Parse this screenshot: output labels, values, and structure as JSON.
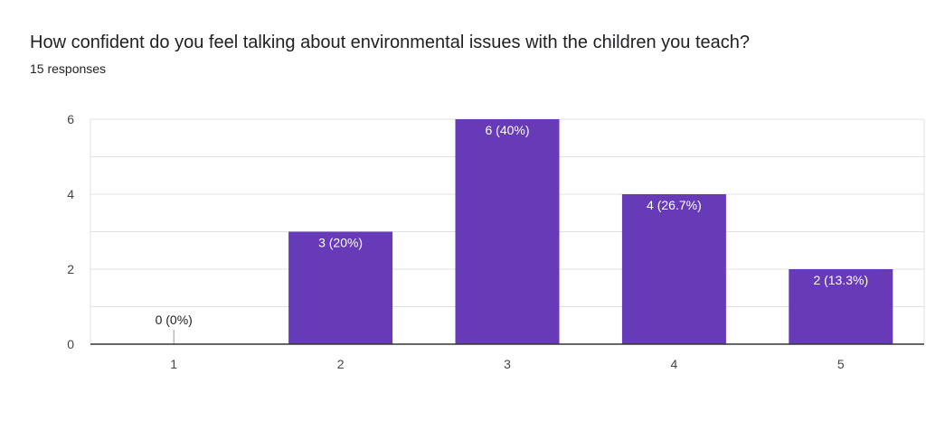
{
  "question": "How confident do you feel talking about environmental issues with the children you teach?",
  "responses": "15 responses",
  "colors": {
    "bar": "#673ab7",
    "grid": "#e0e0e0",
    "axis": "#333333",
    "label_inside": "#ffffff",
    "label_outside": "#202124"
  },
  "chart_data": {
    "type": "bar",
    "categories": [
      "1",
      "2",
      "3",
      "4",
      "5"
    ],
    "values": [
      0,
      3,
      6,
      4,
      2
    ],
    "data_labels": [
      "0 (0%)",
      "3 (20%)",
      "6 (40%)",
      "4 (26.7%)",
      "2 (13.3%)"
    ],
    "title": "How confident do you feel talking about environmental issues with the children you teach?",
    "subtitle": "15 responses",
    "xlabel": "",
    "ylabel": "",
    "ylim": [
      0,
      6
    ],
    "yticks": [
      "0",
      "2",
      "4",
      "6"
    ],
    "ytick_values": [
      0,
      2,
      4,
      6
    ],
    "grid": true,
    "legend": "none"
  }
}
